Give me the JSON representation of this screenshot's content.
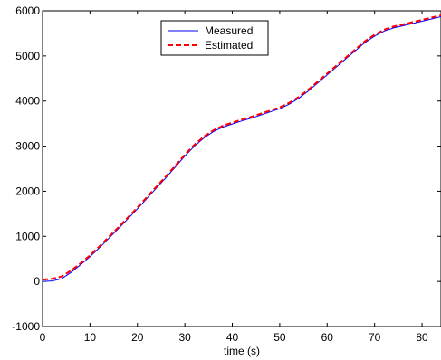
{
  "chart_data": {
    "type": "line",
    "title": "",
    "xlabel": "time (s)",
    "ylabel": "",
    "xlim": [
      0,
      84
    ],
    "ylim": [
      -1000,
      6000
    ],
    "xticks": [
      0,
      10,
      20,
      30,
      40,
      50,
      60,
      70,
      80
    ],
    "yticks": [
      -1000,
      0,
      1000,
      2000,
      3000,
      4000,
      5000,
      6000
    ],
    "grid": false,
    "legend_position": "top-center",
    "series": [
      {
        "name": "Measured",
        "color": "#0000ff",
        "style": "solid",
        "x": [
          0,
          2,
          4,
          6,
          8,
          10,
          12,
          14,
          16,
          18,
          20,
          22,
          24,
          26,
          28,
          30,
          32,
          34,
          36,
          38,
          40,
          42,
          44,
          46,
          48,
          50,
          52,
          54,
          56,
          58,
          60,
          62,
          64,
          66,
          68,
          70,
          72,
          74,
          76,
          78,
          80,
          82,
          84
        ],
        "y": [
          0,
          10,
          60,
          200,
          370,
          550,
          750,
          960,
          1170,
          1390,
          1610,
          1840,
          2070,
          2300,
          2540,
          2780,
          3000,
          3180,
          3320,
          3420,
          3490,
          3560,
          3620,
          3690,
          3760,
          3830,
          3930,
          4060,
          4220,
          4400,
          4580,
          4760,
          4940,
          5120,
          5300,
          5440,
          5550,
          5620,
          5670,
          5720,
          5770,
          5820,
          5870
        ]
      },
      {
        "name": "Estimated",
        "color": "#ff0000",
        "style": "dashed",
        "x": [
          0,
          2,
          4,
          6,
          8,
          10,
          12,
          14,
          16,
          18,
          20,
          22,
          24,
          26,
          28,
          30,
          32,
          34,
          36,
          38,
          40,
          42,
          44,
          46,
          48,
          50,
          52,
          54,
          56,
          58,
          60,
          62,
          64,
          66,
          68,
          70,
          72,
          74,
          76,
          78,
          80,
          82,
          84
        ],
        "y": [
          40,
          60,
          110,
          240,
          400,
          580,
          780,
          990,
          1200,
          1420,
          1640,
          1870,
          2100,
          2330,
          2570,
          2810,
          3030,
          3210,
          3350,
          3450,
          3520,
          3590,
          3650,
          3720,
          3790,
          3860,
          3960,
          4090,
          4250,
          4430,
          4610,
          4790,
          4970,
          5150,
          5330,
          5470,
          5580,
          5650,
          5700,
          5750,
          5800,
          5850,
          5900
        ]
      }
    ]
  }
}
